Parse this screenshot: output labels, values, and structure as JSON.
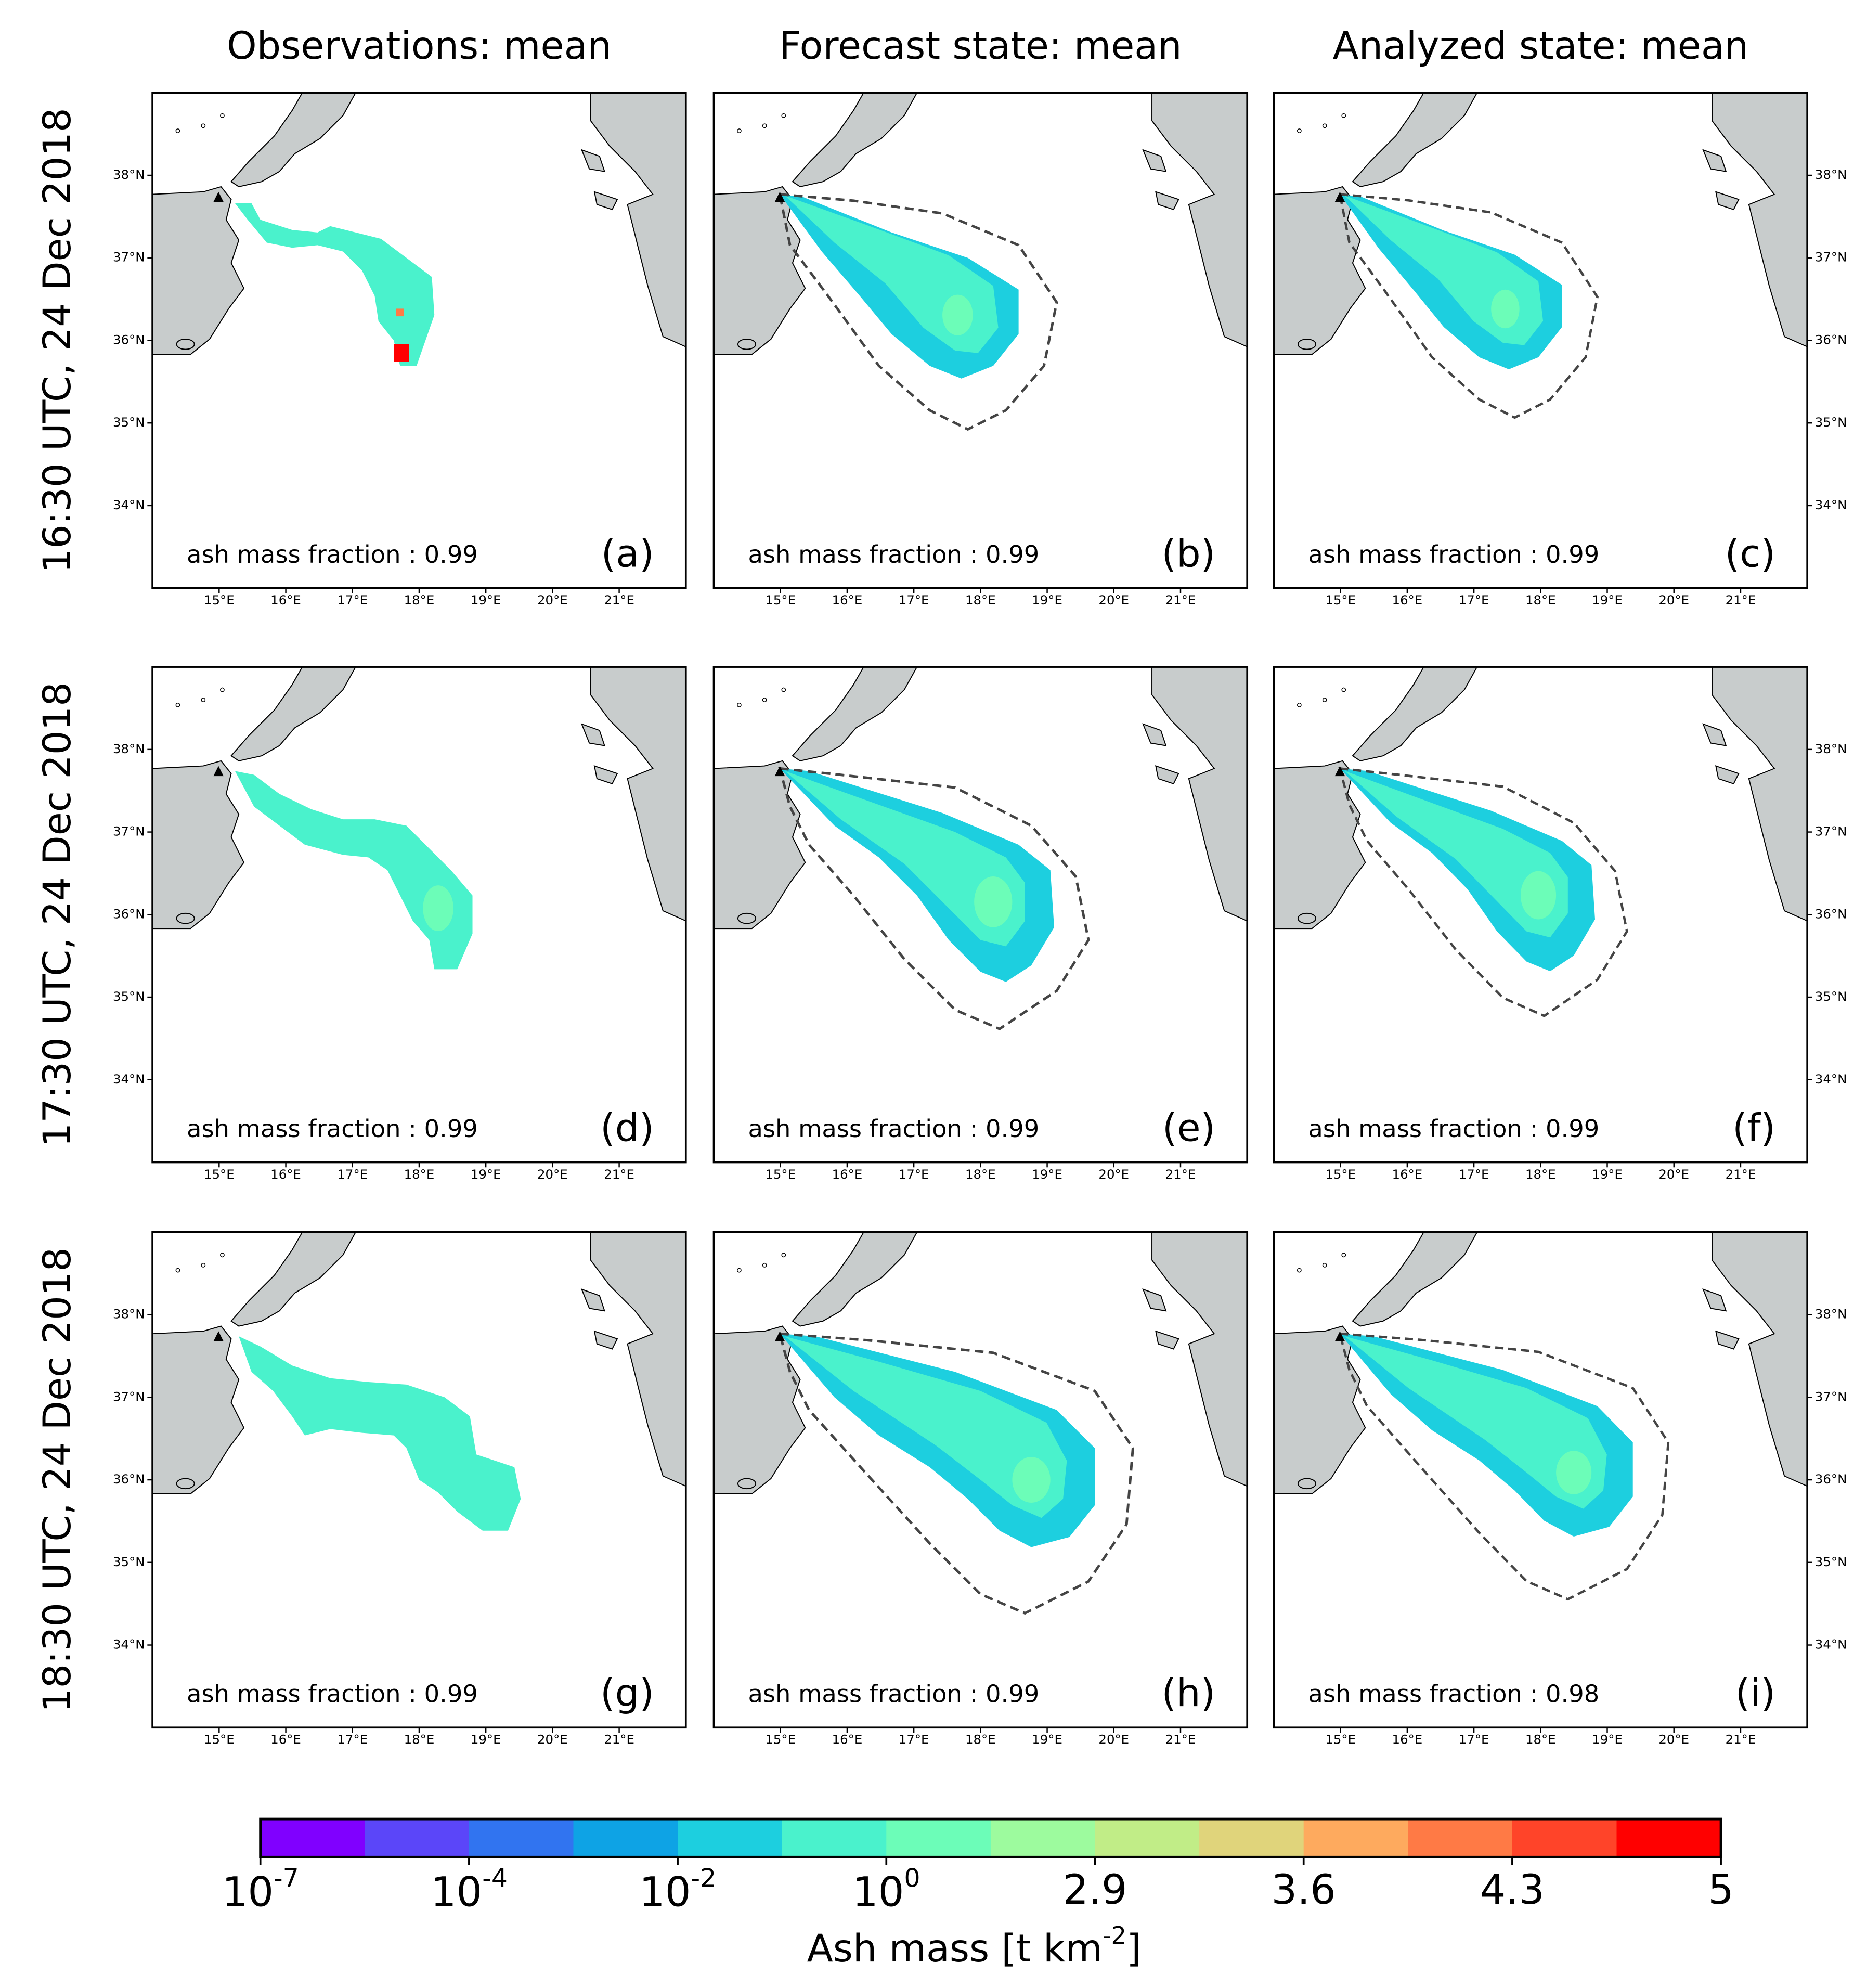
{
  "columns": [
    "Observations: mean",
    "Forecast state: mean",
    "Analyzed state: mean"
  ],
  "rows": [
    "16:30 UTC, 24 Dec 2018",
    "17:30 UTC, 24 Dec 2018",
    "18:30 UTC, 24 Dec 2018"
  ],
  "panels": [
    {
      "label": "(a)",
      "annotation": "ash mass fraction : 0.99"
    },
    {
      "label": "(b)",
      "annotation": "ash mass fraction : 0.99"
    },
    {
      "label": "(c)",
      "annotation": "ash mass fraction : 0.99"
    },
    {
      "label": "(d)",
      "annotation": "ash mass fraction : 0.99"
    },
    {
      "label": "(e)",
      "annotation": "ash mass fraction : 0.99"
    },
    {
      "label": "(f)",
      "annotation": "ash mass fraction : 0.99"
    },
    {
      "label": "(g)",
      "annotation": "ash mass fraction : 0.99"
    },
    {
      "label": "(h)",
      "annotation": "ash mass fraction : 0.99"
    },
    {
      "label": "(i)",
      "annotation": "ash mass fraction : 0.98"
    }
  ],
  "xlim": [
    14,
    22
  ],
  "ylim": [
    33,
    39
  ],
  "xticks": [
    {
      "value": 15,
      "label": "15°E"
    },
    {
      "value": 16,
      "label": "16°E"
    },
    {
      "value": 17,
      "label": "17°E"
    },
    {
      "value": 18,
      "label": "18°E"
    },
    {
      "value": 19,
      "label": "19°E"
    },
    {
      "value": 20,
      "label": "20°E"
    },
    {
      "value": 21,
      "label": "21°E"
    }
  ],
  "yticks": [
    {
      "value": 34,
      "label": "34°N"
    },
    {
      "value": 35,
      "label": "35°N"
    },
    {
      "value": 36,
      "label": "36°N"
    },
    {
      "value": 37,
      "label": "37°N"
    },
    {
      "value": 38,
      "label": "38°N"
    }
  ],
  "colorbar": {
    "label": [
      "Ash mass [t km",
      "-2",
      "]"
    ],
    "colors": [
      "#8000ff",
      "#5b46f9",
      "#3174f0",
      "#0ea3e5",
      "#1dcfdf",
      "#4af2cc",
      "#6cfdb8",
      "#9dfb9e",
      "#c1ed87",
      "#e0d47b",
      "#feaa5e",
      "#ff7a45",
      "#ff4429",
      "#ff0000"
    ],
    "boundaries": [
      1e-07,
      3e-06,
      0.0001,
      0.001,
      0.01,
      0.1,
      1,
      1.95,
      2.9,
      3.25,
      3.6,
      3.95,
      4.3,
      4.65,
      5
    ],
    "ticks": [
      {
        "value": 1e-07,
        "label": [
          "10",
          "-7"
        ]
      },
      {
        "value": 0.0001,
        "label": [
          "10",
          "-4"
        ]
      },
      {
        "value": 0.01,
        "label": [
          "10",
          "-2"
        ]
      },
      {
        "value": 1,
        "label": [
          "10",
          "0"
        ]
      },
      2.9,
      3.6,
      4.3,
      5
    ]
  }
}
